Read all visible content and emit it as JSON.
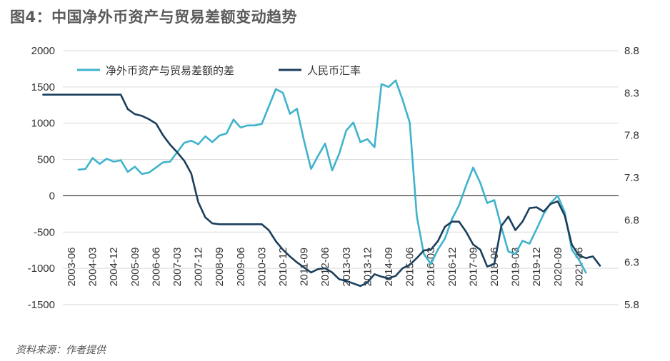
{
  "figure": {
    "title": "图4：中国净外币资产与贸易差额变动趋势",
    "source": "资料来源：作者提供"
  },
  "colors": {
    "series1": "#3fb3cc",
    "series2": "#1b3f5c",
    "axis": "#222222",
    "grid": "#d9d9d9"
  },
  "chart_data": {
    "type": "line",
    "grid": true,
    "legend_position": "top",
    "y_left": {
      "ticks": [
        2000,
        1500,
        1000,
        500,
        0,
        -500,
        -1000,
        -1500
      ],
      "lim": [
        -1500,
        2000
      ]
    },
    "y_right": {
      "ticks": [
        8.8,
        8.3,
        7.8,
        7.3,
        6.8,
        6.3,
        5.8
      ],
      "lim": [
        5.8,
        8.8
      ]
    },
    "x_ticks": [
      "2003-06",
      "2004-03",
      "2004-12",
      "2005-09",
      "2006-06",
      "2007-03",
      "2007-12",
      "2008-09",
      "2009-06",
      "2010-03",
      "2010-12",
      "2011-09",
      "2012-06",
      "2013-03",
      "2013-12",
      "2014-09",
      "2015-06",
      "2016-03",
      "2016-12",
      "2017-09",
      "2018-06",
      "2019-03",
      "2019-12",
      "2020-09",
      "2021-06"
    ],
    "x_ticks_note": "quarterly tick index 0 = 2003-06; x values below are quarter indices from 2003-06",
    "series": [
      {
        "name": "净外币资产与贸易差额的差",
        "axis": "left",
        "points": [
          [
            1,
            360
          ],
          [
            2,
            370
          ],
          [
            3,
            520
          ],
          [
            4,
            440
          ],
          [
            5,
            510
          ],
          [
            6,
            470
          ],
          [
            7,
            490
          ],
          [
            8,
            330
          ],
          [
            9,
            400
          ],
          [
            10,
            300
          ],
          [
            11,
            320
          ],
          [
            12,
            390
          ],
          [
            13,
            460
          ],
          [
            14,
            470
          ],
          [
            15,
            600
          ],
          [
            16,
            730
          ],
          [
            17,
            760
          ],
          [
            18,
            710
          ],
          [
            19,
            820
          ],
          [
            20,
            740
          ],
          [
            21,
            830
          ],
          [
            22,
            860
          ],
          [
            23,
            1050
          ],
          [
            24,
            940
          ],
          [
            25,
            970
          ],
          [
            26,
            970
          ],
          [
            27,
            990
          ],
          [
            28,
            1230
          ],
          [
            29,
            1470
          ],
          [
            30,
            1420
          ],
          [
            31,
            1130
          ],
          [
            32,
            1200
          ],
          [
            33,
            760
          ],
          [
            34,
            370
          ],
          [
            35,
            550
          ],
          [
            36,
            720
          ],
          [
            37,
            350
          ],
          [
            38,
            580
          ],
          [
            39,
            900
          ],
          [
            40,
            1010
          ],
          [
            41,
            740
          ],
          [
            42,
            780
          ],
          [
            43,
            670
          ],
          [
            44,
            1540
          ],
          [
            45,
            1500
          ],
          [
            46,
            1590
          ],
          [
            47,
            1320
          ],
          [
            48,
            1010
          ],
          [
            49,
            -280
          ],
          [
            50,
            -800
          ],
          [
            51,
            -940
          ],
          [
            52,
            -740
          ],
          [
            53,
            -590
          ],
          [
            54,
            -320
          ],
          [
            55,
            -130
          ],
          [
            56,
            140
          ],
          [
            57,
            390
          ],
          [
            58,
            180
          ],
          [
            59,
            -100
          ],
          [
            60,
            -60
          ],
          [
            61,
            -430
          ],
          [
            62,
            -770
          ],
          [
            63,
            -800
          ],
          [
            64,
            -620
          ],
          [
            65,
            -660
          ],
          [
            66,
            -460
          ],
          [
            67,
            -250
          ],
          [
            68,
            -100
          ],
          [
            69,
            0
          ],
          [
            70,
            -230
          ],
          [
            71,
            -740
          ],
          [
            72,
            -880
          ],
          [
            73,
            -1060
          ]
        ]
      },
      {
        "name": "人民币汇率",
        "axis": "right",
        "points": [
          [
            -4,
            8.28
          ],
          [
            -3,
            8.28
          ],
          [
            -2,
            8.28
          ],
          [
            -1,
            8.28
          ],
          [
            0,
            8.28
          ],
          [
            1,
            8.28
          ],
          [
            2,
            8.28
          ],
          [
            3,
            8.28
          ],
          [
            4,
            8.28
          ],
          [
            5,
            8.28
          ],
          [
            6,
            8.28
          ],
          [
            7,
            8.28
          ],
          [
            8,
            8.11
          ],
          [
            9,
            8.05
          ],
          [
            10,
            8.03
          ],
          [
            11,
            7.99
          ],
          [
            12,
            7.94
          ],
          [
            13,
            7.8
          ],
          [
            14,
            7.69
          ],
          [
            15,
            7.6
          ],
          [
            16,
            7.5
          ],
          [
            17,
            7.35
          ],
          [
            18,
            7.01
          ],
          [
            19,
            6.83
          ],
          [
            20,
            6.76
          ],
          [
            21,
            6.75
          ],
          [
            22,
            6.75
          ],
          [
            23,
            6.75
          ],
          [
            24,
            6.75
          ],
          [
            25,
            6.75
          ],
          [
            26,
            6.75
          ],
          [
            27,
            6.75
          ],
          [
            28,
            6.68
          ],
          [
            29,
            6.55
          ],
          [
            30,
            6.45
          ],
          [
            31,
            6.37
          ],
          [
            32,
            6.3
          ],
          [
            33,
            6.24
          ],
          [
            34,
            6.18
          ],
          [
            35,
            6.22
          ],
          [
            36,
            6.23
          ],
          [
            37,
            6.18
          ],
          [
            38,
            6.1
          ],
          [
            39,
            6.08
          ],
          [
            40,
            6.05
          ],
          [
            41,
            6.02
          ],
          [
            42,
            6.06
          ],
          [
            43,
            6.16
          ],
          [
            44,
            6.13
          ],
          [
            45,
            6.11
          ],
          [
            46,
            6.14
          ],
          [
            47,
            6.23
          ],
          [
            48,
            6.27
          ],
          [
            49,
            6.35
          ],
          [
            50,
            6.44
          ],
          [
            51,
            6.45
          ],
          [
            52,
            6.55
          ],
          [
            53,
            6.72
          ],
          [
            54,
            6.78
          ],
          [
            55,
            6.78
          ],
          [
            56,
            6.66
          ],
          [
            57,
            6.51
          ],
          [
            58,
            6.45
          ],
          [
            59,
            6.25
          ],
          [
            60,
            6.28
          ],
          [
            61,
            6.73
          ],
          [
            62,
            6.84
          ],
          [
            63,
            6.68
          ],
          [
            64,
            6.78
          ],
          [
            65,
            6.94
          ],
          [
            66,
            6.95
          ],
          [
            67,
            6.9
          ],
          [
            68,
            6.99
          ],
          [
            69,
            7.02
          ],
          [
            70,
            6.85
          ],
          [
            71,
            6.51
          ],
          [
            72,
            6.38
          ],
          [
            73,
            6.35
          ],
          [
            74,
            6.37
          ],
          [
            75,
            6.26
          ]
        ]
      }
    ]
  }
}
